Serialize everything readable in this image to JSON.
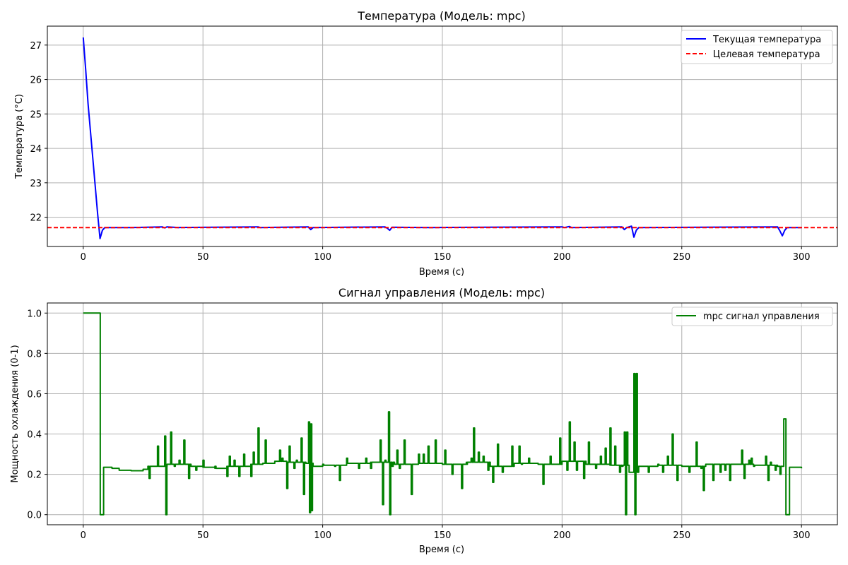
{
  "chart_data": [
    {
      "type": "line",
      "title": "Температура (Модель: mpc)",
      "xlabel": "Время (с)",
      "ylabel": "Температура (°C)",
      "xlim": [
        -15,
        315
      ],
      "ylim": [
        21.15,
        27.55
      ],
      "x_ticks": [
        0,
        50,
        100,
        150,
        200,
        250,
        300
      ],
      "y_ticks": [
        22,
        23,
        24,
        25,
        26,
        27
      ],
      "grid": true,
      "legend_position": "top-right",
      "series": [
        {
          "name": "Текущая температура",
          "color": "#0000ff",
          "style": "solid",
          "points": [
            [
              0,
              27.22
            ],
            [
              1,
              26.3
            ],
            [
              2,
              25.3
            ],
            [
              3,
              24.5
            ],
            [
              4,
              23.7
            ],
            [
              5,
              22.9
            ],
            [
              6,
              22.1
            ],
            [
              7,
              21.38
            ],
            [
              8,
              21.62
            ],
            [
              9,
              21.7
            ],
            [
              20,
              21.7
            ],
            [
              33,
              21.72
            ],
            [
              34,
              21.69
            ],
            [
              35,
              21.72
            ],
            [
              40,
              21.7
            ],
            [
              73,
              21.72
            ],
            [
              74,
              21.7
            ],
            [
              94,
              21.72
            ],
            [
              95,
              21.64
            ],
            [
              96,
              21.7
            ],
            [
              126,
              21.72
            ],
            [
              127,
              21.68
            ],
            [
              128,
              21.62
            ],
            [
              129,
              21.71
            ],
            [
              145,
              21.7
            ],
            [
              200,
              21.72
            ],
            [
              201,
              21.7
            ],
            [
              203,
              21.73
            ],
            [
              204,
              21.7
            ],
            [
              225,
              21.72
            ],
            [
              226,
              21.64
            ],
            [
              227,
              21.7
            ],
            [
              229,
              21.74
            ],
            [
              230,
              21.42
            ],
            [
              231,
              21.62
            ],
            [
              232,
              21.7
            ],
            [
              290,
              21.72
            ],
            [
              291,
              21.6
            ],
            [
              292,
              21.46
            ],
            [
              293,
              21.62
            ],
            [
              294,
              21.7
            ],
            [
              300,
              21.7
            ]
          ]
        },
        {
          "name": "Целевая температура",
          "color": "#ff0000",
          "style": "dashed",
          "y_constant": 21.7
        }
      ]
    },
    {
      "type": "line",
      "title": "Сигнал управления (Модель: mpc)",
      "xlabel": "Время (с)",
      "ylabel": "Мощность охлаждения (0-1)",
      "xlim": [
        -15,
        315
      ],
      "ylim": [
        -0.05,
        1.05
      ],
      "x_ticks": [
        0,
        50,
        100,
        150,
        200,
        250,
        300
      ],
      "y_ticks": [
        0.0,
        0.2,
        0.4,
        0.6,
        0.8,
        1.0
      ],
      "grid": true,
      "legend_position": "top-right",
      "series": [
        {
          "name": "mpc сигнал управления",
          "color": "#008000",
          "style": "steps",
          "base": [
            [
              0,
              1.0
            ],
            [
              7,
              1.0
            ],
            [
              7.1,
              0.0
            ],
            [
              8.4,
              0.0
            ],
            [
              8.5,
              0.235
            ],
            [
              12,
              0.23
            ],
            [
              15,
              0.22
            ],
            [
              20,
              0.218
            ],
            [
              25,
              0.225
            ],
            [
              27,
              0.24
            ],
            [
              35,
              0.25
            ],
            [
              45,
              0.24
            ],
            [
              50,
              0.235
            ],
            [
              55,
              0.23
            ],
            [
              60,
              0.24
            ],
            [
              70,
              0.25
            ],
            [
              75,
              0.255
            ],
            [
              80,
              0.265
            ],
            [
              85,
              0.26
            ],
            [
              93,
              0.255
            ],
            [
              96,
              0.24
            ],
            [
              100,
              0.245
            ],
            [
              110,
              0.255
            ],
            [
              120,
              0.26
            ],
            [
              130,
              0.25
            ],
            [
              140,
              0.255
            ],
            [
              150,
              0.25
            ],
            [
              160,
              0.26
            ],
            [
              170,
              0.24
            ],
            [
              180,
              0.255
            ],
            [
              190,
              0.25
            ],
            [
              200,
              0.265
            ],
            [
              210,
              0.25
            ],
            [
              220,
              0.245
            ],
            [
              228,
              0.21
            ],
            [
              232,
              0.24
            ],
            [
              240,
              0.245
            ],
            [
              250,
              0.24
            ],
            [
              260,
              0.25
            ],
            [
              270,
              0.25
            ],
            [
              280,
              0.245
            ],
            [
              290,
              0.24
            ],
            [
              292.6,
              0.475
            ],
            [
              293.5,
              0.0
            ],
            [
              294.6,
              0.0
            ],
            [
              295,
              0.235
            ],
            [
              300,
              0.23
            ]
          ],
          "spikes": [
            [
              27.5,
              0.18
            ],
            [
              31,
              0.34
            ],
            [
              34,
              0.39
            ],
            [
              34.5,
              0.0
            ],
            [
              36.5,
              0.41
            ],
            [
              38,
              0.24
            ],
            [
              40,
              0.27
            ],
            [
              42,
              0.37
            ],
            [
              44,
              0.18
            ],
            [
              47,
              0.22
            ],
            [
              50,
              0.27
            ],
            [
              55,
              0.24
            ],
            [
              58,
              0.23
            ],
            [
              60,
              0.19
            ],
            [
              61,
              0.29
            ],
            [
              63,
              0.27
            ],
            [
              65,
              0.19
            ],
            [
              67,
              0.3
            ],
            [
              70,
              0.19
            ],
            [
              71,
              0.31
            ],
            [
              73,
              0.43
            ],
            [
              76,
              0.37
            ],
            [
              82,
              0.32
            ],
            [
              83,
              0.28
            ],
            [
              85,
              0.13
            ],
            [
              86,
              0.34
            ],
            [
              88,
              0.23
            ],
            [
              89,
              0.27
            ],
            [
              91,
              0.38
            ],
            [
              92,
              0.1
            ],
            [
              94.1,
              0.46
            ],
            [
              94.5,
              0.01
            ],
            [
              95,
              0.45
            ],
            [
              95.3,
              0.02
            ],
            [
              100,
              0.25
            ],
            [
              105,
              0.24
            ],
            [
              107,
              0.17
            ],
            [
              110,
              0.28
            ],
            [
              115,
              0.23
            ],
            [
              118,
              0.28
            ],
            [
              120,
              0.23
            ],
            [
              124,
              0.37
            ],
            [
              125,
              0.05
            ],
            [
              126,
              0.27
            ],
            [
              127.5,
              0.51
            ],
            [
              128,
              0.0
            ],
            [
              129,
              0.24
            ],
            [
              131,
              0.32
            ],
            [
              132,
              0.23
            ],
            [
              134,
              0.37
            ],
            [
              137,
              0.1
            ],
            [
              140,
              0.3
            ],
            [
              142,
              0.3
            ],
            [
              144,
              0.34
            ],
            [
              147,
              0.37
            ],
            [
              151,
              0.32
            ],
            [
              154,
              0.2
            ],
            [
              158,
              0.13
            ],
            [
              160,
              0.25
            ],
            [
              162,
              0.28
            ],
            [
              163,
              0.43
            ],
            [
              165,
              0.31
            ],
            [
              167,
              0.29
            ],
            [
              169,
              0.22
            ],
            [
              171,
              0.16
            ],
            [
              173,
              0.35
            ],
            [
              175,
              0.21
            ],
            [
              179,
              0.34
            ],
            [
              182,
              0.34
            ],
            [
              183,
              0.25
            ],
            [
              186,
              0.28
            ],
            [
              192,
              0.15
            ],
            [
              195,
              0.29
            ],
            [
              199,
              0.38
            ],
            [
              202,
              0.22
            ],
            [
              203,
              0.46
            ],
            [
              205,
              0.36
            ],
            [
              206,
              0.22
            ],
            [
              209,
              0.18
            ],
            [
              211,
              0.36
            ],
            [
              214,
              0.23
            ],
            [
              216,
              0.29
            ],
            [
              218,
              0.33
            ],
            [
              220,
              0.43
            ],
            [
              222,
              0.34
            ],
            [
              224,
              0.21
            ],
            [
              225,
              0.24
            ],
            [
              226,
              0.41
            ],
            [
              226.5,
              0.0
            ],
            [
              227,
              0.41
            ],
            [
              230,
              0.7
            ],
            [
              230.4,
              0.0
            ],
            [
              231,
              0.7
            ],
            [
              233,
              0.24
            ],
            [
              236,
              0.21
            ],
            [
              240,
              0.25
            ],
            [
              242,
              0.21
            ],
            [
              244,
              0.29
            ],
            [
              246,
              0.4
            ],
            [
              248,
              0.17
            ],
            [
              250,
              0.24
            ],
            [
              253,
              0.21
            ],
            [
              254,
              0.24
            ],
            [
              256,
              0.36
            ],
            [
              258,
              0.23
            ],
            [
              259,
              0.12
            ],
            [
              262,
              0.25
            ],
            [
              263,
              0.17
            ],
            [
              266,
              0.21
            ],
            [
              268,
              0.22
            ],
            [
              270,
              0.17
            ],
            [
              275,
              0.32
            ],
            [
              276,
              0.18
            ],
            [
              278,
              0.27
            ],
            [
              279,
              0.28
            ],
            [
              280,
              0.24
            ],
            [
              285,
              0.29
            ],
            [
              286,
              0.17
            ],
            [
              287,
              0.26
            ],
            [
              289,
              0.22
            ],
            [
              290,
              0.24
            ],
            [
              291,
              0.2
            ]
          ]
        }
      ]
    }
  ]
}
